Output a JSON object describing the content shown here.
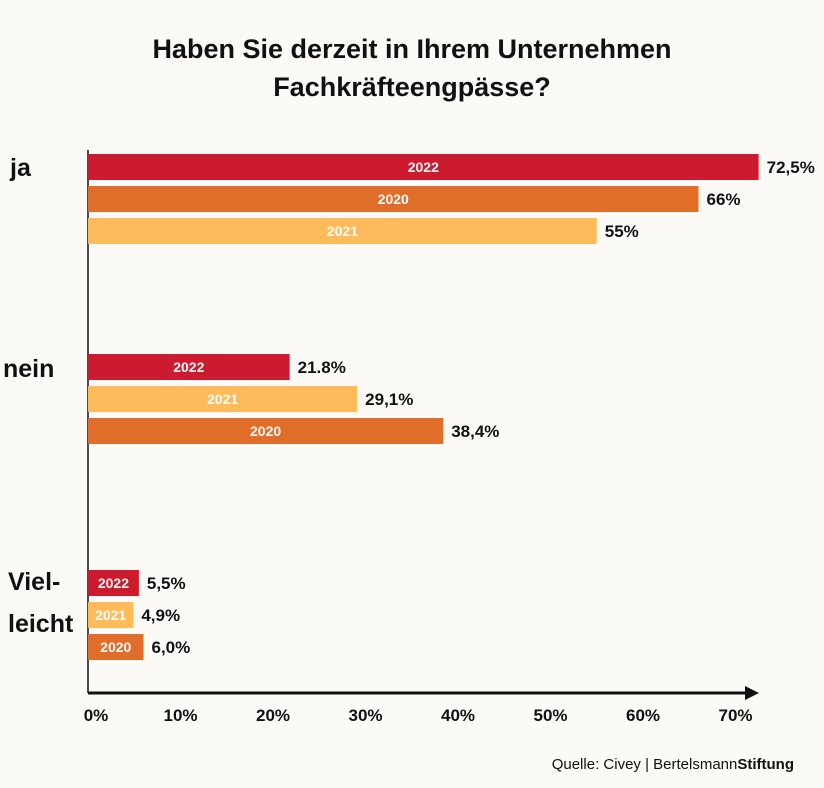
{
  "title_line1": "Haben Sie derzeit in Ihrem Unternehmen",
  "title_line2": "Fachkräfteengpässe?",
  "source": {
    "prefix": "Quelle: Civey | Bertelsmann",
    "brand": "Stiftung"
  },
  "chart_data": {
    "type": "bar",
    "orientation": "horizontal",
    "title": "Haben Sie derzeit in Ihrem Unternehmen Fachkräfteengpässe?",
    "xlim": [
      0,
      70
    ],
    "x_ticks": [
      "0%",
      "10%",
      "20%",
      "30%",
      "40%",
      "50%",
      "60%",
      "70%"
    ],
    "colors": {
      "2022": "#cc1b2e",
      "2020": "#e06e2a",
      "2021": "#fdbb5b"
    },
    "groups": [
      {
        "label": [
          "ja"
        ],
        "bars": [
          {
            "year": "2022",
            "value": 72.5,
            "label": "72,5%"
          },
          {
            "year": "2020",
            "value": 66,
            "label": "66%"
          },
          {
            "year": "2021",
            "value": 55,
            "label": "55%"
          }
        ]
      },
      {
        "label": [
          "nein"
        ],
        "bars": [
          {
            "year": "2022",
            "value": 21.8,
            "label": "21.8%"
          },
          {
            "year": "2021",
            "value": 29.1,
            "label": "29,1%"
          },
          {
            "year": "2020",
            "value": 38.4,
            "label": "38,4%"
          }
        ]
      },
      {
        "label": [
          "Viel-",
          "leicht"
        ],
        "bars": [
          {
            "year": "2022",
            "value": 5.5,
            "label": "5,5%"
          },
          {
            "year": "2021",
            "value": 4.9,
            "label": "4,9%"
          },
          {
            "year": "2020",
            "value": 6.0,
            "label": "6,0%"
          }
        ]
      }
    ]
  }
}
